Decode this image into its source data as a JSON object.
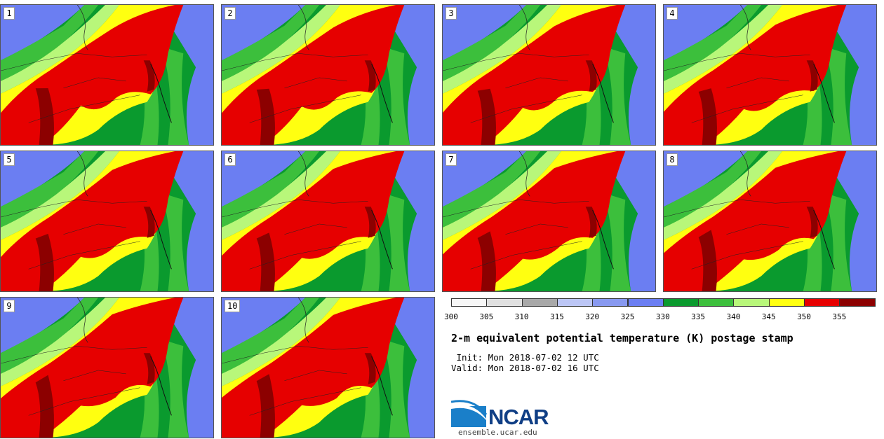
{
  "stamps": [
    {
      "label": "1"
    },
    {
      "label": "2"
    },
    {
      "label": "3"
    },
    {
      "label": "4"
    },
    {
      "label": "5"
    },
    {
      "label": "6"
    },
    {
      "label": "7"
    },
    {
      "label": "8"
    },
    {
      "label": "9"
    },
    {
      "label": "10"
    }
  ],
  "colorbar": {
    "colors": [
      "#f7f7f7",
      "#e0e0e0",
      "#a8a8a8",
      "#bcc6f5",
      "#8899f0",
      "#6b7ef2",
      "#0a9a2e",
      "#3cbf3c",
      "#b8f77a",
      "#ffff10",
      "#e60000",
      "#8c0000"
    ],
    "ticks": [
      "300",
      "305",
      "310",
      "315",
      "320",
      "325",
      "330",
      "335",
      "340",
      "345",
      "350",
      "355"
    ]
  },
  "title": "2-m equivalent potential temperature (K) postage stamp",
  "init": " Init: Mon 2018-07-02 12 UTC",
  "valid": "Valid: Mon 2018-07-02 16 UTC",
  "logo": {
    "text": "NCAR",
    "site": "ensemble.ucar.edu"
  }
}
